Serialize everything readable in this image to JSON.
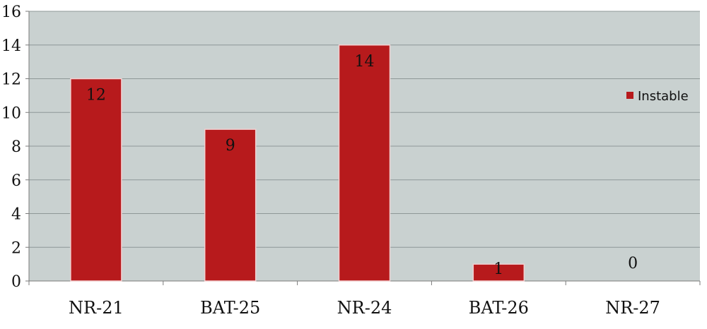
{
  "chart_data": {
    "type": "bar",
    "categories": [
      "NR-21",
      "BAT-25",
      "NR-24",
      "BAT-26",
      "NR-27"
    ],
    "series": [
      {
        "name": "Instable",
        "values": [
          12,
          9,
          14,
          1,
          0
        ]
      }
    ],
    "data_labels": [
      "12",
      "9",
      "14",
      "1",
      "0"
    ],
    "ylim": [
      0,
      16
    ],
    "yticks": [
      0,
      2,
      4,
      6,
      8,
      10,
      12,
      14,
      16
    ],
    "grid": true,
    "legend_position": "right",
    "colors": {
      "plot_background": "#c9d1d0",
      "bar_fill": "#b71a1c",
      "bar_stroke": "#f2d0d0",
      "grid": "#8e9897"
    }
  }
}
